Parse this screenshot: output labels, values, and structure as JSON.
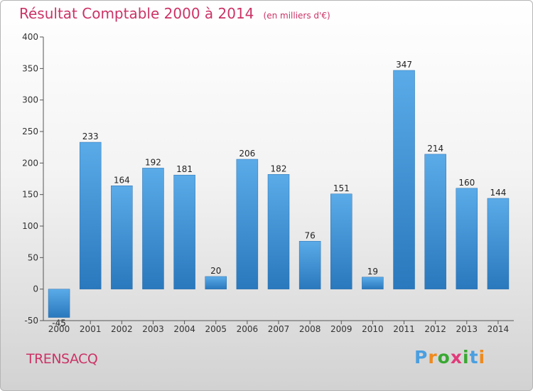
{
  "chart_data": {
    "type": "bar",
    "title": "Résultat Comptable 2000 à 2014",
    "subtitle": "(en milliers d'€)",
    "categories": [
      "2000",
      "2001",
      "2002",
      "2003",
      "2004",
      "2005",
      "2006",
      "2007",
      "2008",
      "2009",
      "2010",
      "2011",
      "2012",
      "2013",
      "2014"
    ],
    "values": [
      -45,
      233,
      164,
      192,
      181,
      20,
      206,
      182,
      76,
      151,
      19,
      347,
      214,
      160,
      144
    ],
    "ylim": [
      -50,
      400
    ],
    "yticks": [
      -50,
      0,
      50,
      100,
      150,
      200,
      250,
      300,
      350,
      400
    ],
    "xlabel": "",
    "ylabel": "",
    "grid": false,
    "bar_color": "#3d8fd6"
  },
  "footer": {
    "commune": "TRENSACQ",
    "logo_text": "Proxiti"
  },
  "colors": {
    "title": "#cc3366",
    "logo": [
      "#4a9fe0",
      "#f08a1c",
      "#39a832",
      "#e23a7a",
      "#39a832",
      "#4a9fe0",
      "#f08a1c"
    ]
  }
}
